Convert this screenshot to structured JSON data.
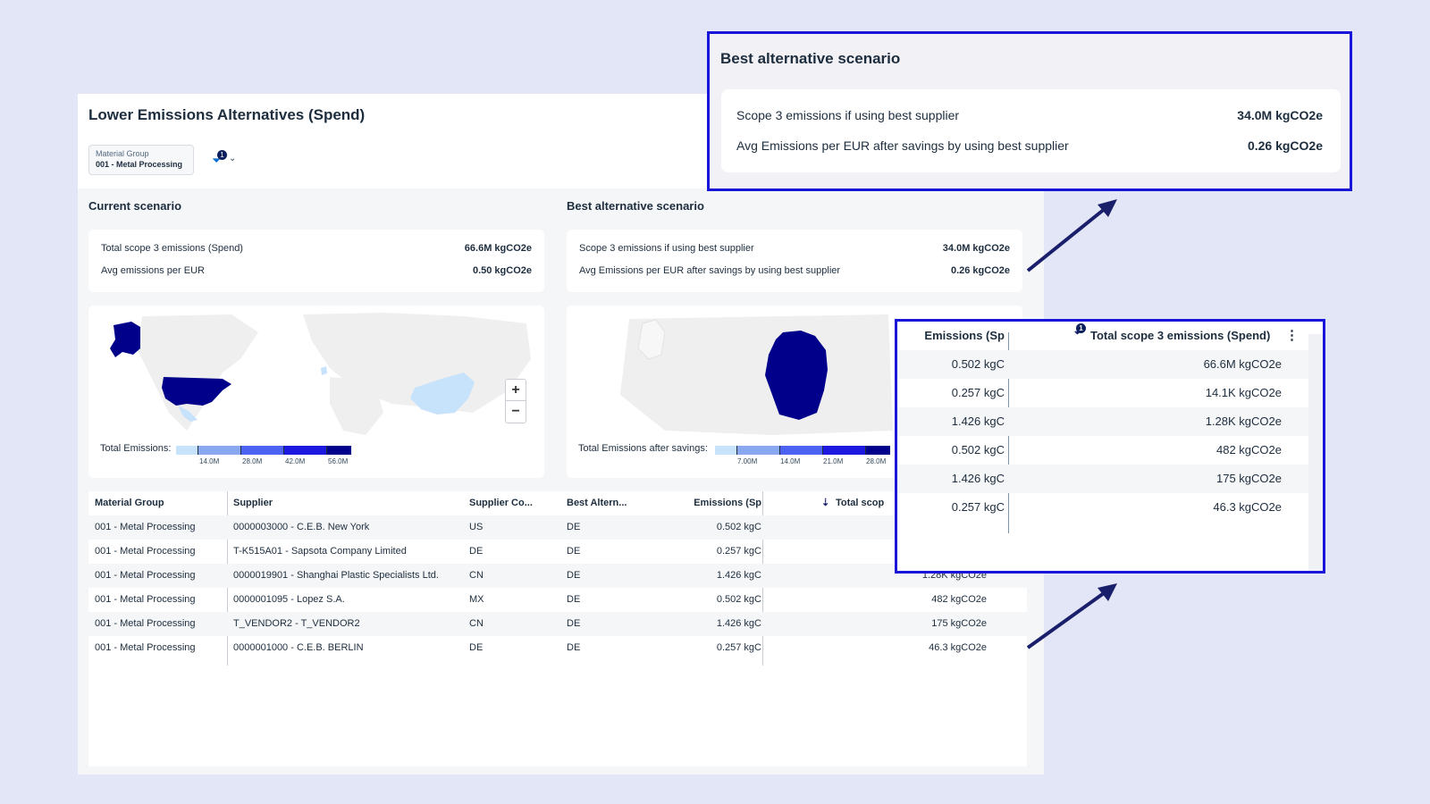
{
  "app": {
    "title": "Lower Emissions Alternatives (Spend)",
    "filter": {
      "label": "Material Group",
      "value": "001 - Metal Processing",
      "badge": "1"
    }
  },
  "current": {
    "title": "Current scenario",
    "rows": [
      {
        "label": "Total scope 3 emissions (Spend)",
        "value": "66.6M kgCO2e"
      },
      {
        "label": "Avg emissions per EUR",
        "value": "0.50 kgCO2e"
      }
    ],
    "legend": {
      "label": "Total Emissions:",
      "ticks": [
        "14.0M",
        "28.0M",
        "42.0M",
        "56.0M"
      ]
    }
  },
  "best": {
    "title": "Best alternative scenario",
    "rows": [
      {
        "label": "Scope 3 emissions if using best supplier",
        "value": "34.0M kgCO2e"
      },
      {
        "label": "Avg Emissions per EUR after savings by using best supplier",
        "value": "0.26 kgCO2e"
      }
    ],
    "legend": {
      "label": "Total Emissions after savings:",
      "ticks": [
        "7.00M",
        "14.0M",
        "21.0M",
        "28.0M"
      ]
    }
  },
  "colors": {
    "highlight": "#1a16d9",
    "map_dark": "#00008b",
    "map_light": "#c7e2fb",
    "arrow": "#1a1f6b"
  },
  "table": {
    "headers": [
      "Material Group",
      "Supplier",
      "Supplier Co...",
      "Best Altern...",
      "Emissions (Sp",
      "Total scop"
    ],
    "rows": [
      [
        "001 - Metal Processing",
        "0000003000 - C.E.B. New York",
        "US",
        "DE",
        "0.502 kgC",
        ""
      ],
      [
        "001 - Metal Processing",
        "T-K515A01 - Sapsota Company Limited",
        "DE",
        "DE",
        "0.257 kgC",
        ""
      ],
      [
        "001 - Metal Processing",
        "0000019901 - Shanghai Plastic Specialists Ltd.",
        "CN",
        "DE",
        "1.426 kgC",
        "1.28K kgCO2e"
      ],
      [
        "001 - Metal Processing",
        "0000001095 - Lopez S.A.",
        "MX",
        "DE",
        "0.502 kgC",
        "482 kgCO2e"
      ],
      [
        "001 - Metal Processing",
        "T_VENDOR2 - T_VENDOR2",
        "CN",
        "DE",
        "1.426 kgC",
        "175 kgCO2e"
      ],
      [
        "001 - Metal Processing",
        "0000001000 - C.E.B. BERLIN",
        "DE",
        "DE",
        "0.257 kgC",
        "46.3 kgCO2e"
      ]
    ]
  },
  "zoom": {
    "in": "+",
    "out": "−"
  },
  "callout_table": {
    "headers": [
      "Emissions (Sp",
      "Total scope 3 emissions (Spend)"
    ],
    "sort_badge": "1",
    "rows": [
      [
        "0.502 kgC",
        "66.6M kgCO2e"
      ],
      [
        "0.257 kgC",
        "14.1K kgCO2e"
      ],
      [
        "1.426 kgC",
        "1.28K kgCO2e"
      ],
      [
        "0.502 kgC",
        "482 kgCO2e"
      ],
      [
        "1.426 kgC",
        "175 kgCO2e"
      ],
      [
        "0.257 kgC",
        "46.3 kgCO2e"
      ]
    ]
  }
}
